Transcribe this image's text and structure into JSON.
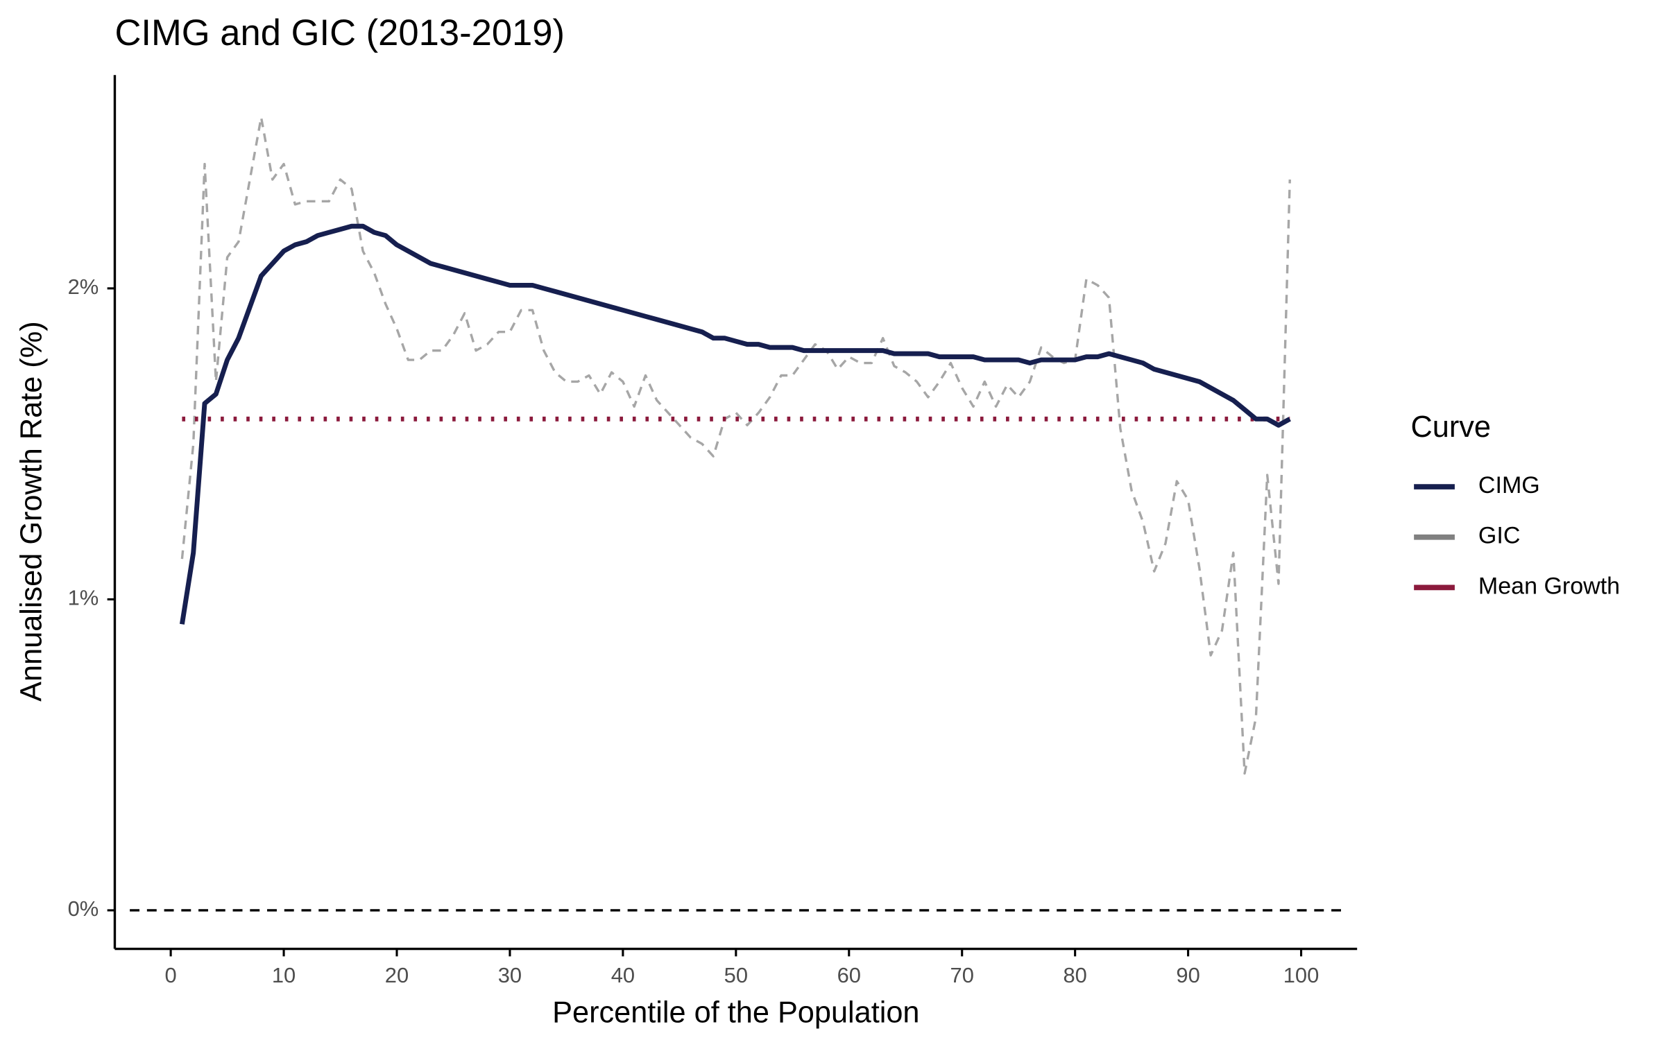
{
  "chart_data": {
    "type": "line",
    "title": "CIMG and GIC (2013-2019)",
    "x_label": "Percentile of the Population",
    "y_label": "Annualised Growth Rate (%)",
    "legend_title": "Curve",
    "legend_position": "right",
    "x": [
      1,
      2,
      3,
      4,
      5,
      6,
      7,
      8,
      9,
      10,
      11,
      12,
      13,
      14,
      15,
      16,
      17,
      18,
      19,
      20,
      21,
      22,
      23,
      24,
      25,
      26,
      27,
      28,
      29,
      30,
      31,
      32,
      33,
      34,
      35,
      36,
      37,
      38,
      39,
      40,
      41,
      42,
      43,
      44,
      45,
      46,
      47,
      48,
      49,
      50,
      51,
      52,
      53,
      54,
      55,
      56,
      57,
      58,
      59,
      60,
      61,
      62,
      63,
      64,
      65,
      66,
      67,
      68,
      69,
      70,
      71,
      72,
      73,
      74,
      75,
      76,
      77,
      78,
      79,
      80,
      81,
      82,
      83,
      84,
      85,
      86,
      87,
      88,
      89,
      90,
      91,
      92,
      93,
      94,
      95,
      96,
      97,
      98,
      99
    ],
    "series": [
      {
        "name": "CIMG",
        "color": "#161f4f",
        "style": "solid",
        "values": [
          0.92,
          1.15,
          1.63,
          1.66,
          1.77,
          1.84,
          1.94,
          2.04,
          2.08,
          2.12,
          2.14,
          2.15,
          2.17,
          2.18,
          2.19,
          2.2,
          2.2,
          2.18,
          2.17,
          2.14,
          2.12,
          2.1,
          2.08,
          2.07,
          2.06,
          2.05,
          2.04,
          2.03,
          2.02,
          2.01,
          2.01,
          2.01,
          2.0,
          1.99,
          1.98,
          1.97,
          1.96,
          1.95,
          1.94,
          1.93,
          1.92,
          1.91,
          1.9,
          1.89,
          1.88,
          1.87,
          1.86,
          1.84,
          1.84,
          1.83,
          1.82,
          1.82,
          1.81,
          1.81,
          1.81,
          1.8,
          1.8,
          1.8,
          1.8,
          1.8,
          1.8,
          1.8,
          1.8,
          1.79,
          1.79,
          1.79,
          1.79,
          1.78,
          1.78,
          1.78,
          1.78,
          1.77,
          1.77,
          1.77,
          1.77,
          1.76,
          1.77,
          1.77,
          1.77,
          1.77,
          1.78,
          1.78,
          1.79,
          1.78,
          1.77,
          1.76,
          1.74,
          1.73,
          1.72,
          1.71,
          1.7,
          1.68,
          1.66,
          1.64,
          1.61,
          1.58,
          1.58,
          1.56,
          1.58
        ]
      },
      {
        "name": "GIC",
        "color": "#a6a6a6",
        "legend_color": "#808080",
        "style": "dashed",
        "values": [
          1.13,
          1.5,
          2.4,
          1.7,
          2.1,
          2.15,
          2.35,
          2.55,
          2.35,
          2.4,
          2.27,
          2.28,
          2.28,
          2.28,
          2.35,
          2.32,
          2.12,
          2.05,
          1.95,
          1.87,
          1.77,
          1.77,
          1.8,
          1.8,
          1.85,
          1.92,
          1.8,
          1.82,
          1.86,
          1.86,
          1.93,
          1.93,
          1.8,
          1.73,
          1.7,
          1.7,
          1.72,
          1.66,
          1.73,
          1.7,
          1.62,
          1.72,
          1.64,
          1.6,
          1.56,
          1.52,
          1.5,
          1.46,
          1.58,
          1.6,
          1.56,
          1.6,
          1.65,
          1.72,
          1.72,
          1.77,
          1.82,
          1.8,
          1.74,
          1.78,
          1.76,
          1.76,
          1.84,
          1.75,
          1.73,
          1.7,
          1.65,
          1.7,
          1.76,
          1.68,
          1.62,
          1.7,
          1.62,
          1.69,
          1.65,
          1.7,
          1.81,
          1.78,
          1.76,
          1.77,
          2.03,
          2.01,
          1.97,
          1.55,
          1.35,
          1.25,
          1.09,
          1.18,
          1.38,
          1.32,
          1.1,
          0.82,
          0.9,
          1.15,
          0.44,
          0.62,
          1.4,
          1.05,
          2.35
        ]
      },
      {
        "name": "Mean Growth",
        "color": "#8b1a3c",
        "style": "dotted",
        "values": [
          1.58,
          1.58,
          1.58,
          1.58,
          1.58,
          1.58,
          1.58,
          1.58,
          1.58,
          1.58,
          1.58,
          1.58,
          1.58,
          1.58,
          1.58,
          1.58,
          1.58,
          1.58,
          1.58,
          1.58,
          1.58,
          1.58,
          1.58,
          1.58,
          1.58,
          1.58,
          1.58,
          1.58,
          1.58,
          1.58,
          1.58,
          1.58,
          1.58,
          1.58,
          1.58,
          1.58,
          1.58,
          1.58,
          1.58,
          1.58,
          1.58,
          1.58,
          1.58,
          1.58,
          1.58,
          1.58,
          1.58,
          1.58,
          1.58,
          1.58,
          1.58,
          1.58,
          1.58,
          1.58,
          1.58,
          1.58,
          1.58,
          1.58,
          1.58,
          1.58,
          1.58,
          1.58,
          1.58,
          1.58,
          1.58,
          1.58,
          1.58,
          1.58,
          1.58,
          1.58,
          1.58,
          1.58,
          1.58,
          1.58,
          1.58,
          1.58,
          1.58,
          1.58,
          1.58,
          1.58,
          1.58,
          1.58,
          1.58,
          1.58,
          1.58,
          1.58,
          1.58,
          1.58,
          1.58,
          1.58,
          1.58,
          1.58,
          1.58,
          1.58,
          1.58,
          1.58,
          1.58,
          1.58,
          1.58
        ]
      }
    ],
    "reference_line": 0,
    "xlim": [
      -4.95,
      104.95
    ],
    "xticks": [
      0,
      10,
      20,
      30,
      40,
      50,
      60,
      70,
      80,
      90,
      100
    ],
    "ylim": [
      -0.124,
      2.686
    ],
    "yticks": [
      {
        "value": 0,
        "label": "0%"
      },
      {
        "value": 1,
        "label": "1%"
      },
      {
        "value": 2,
        "label": "2%"
      }
    ],
    "grid": false
  }
}
